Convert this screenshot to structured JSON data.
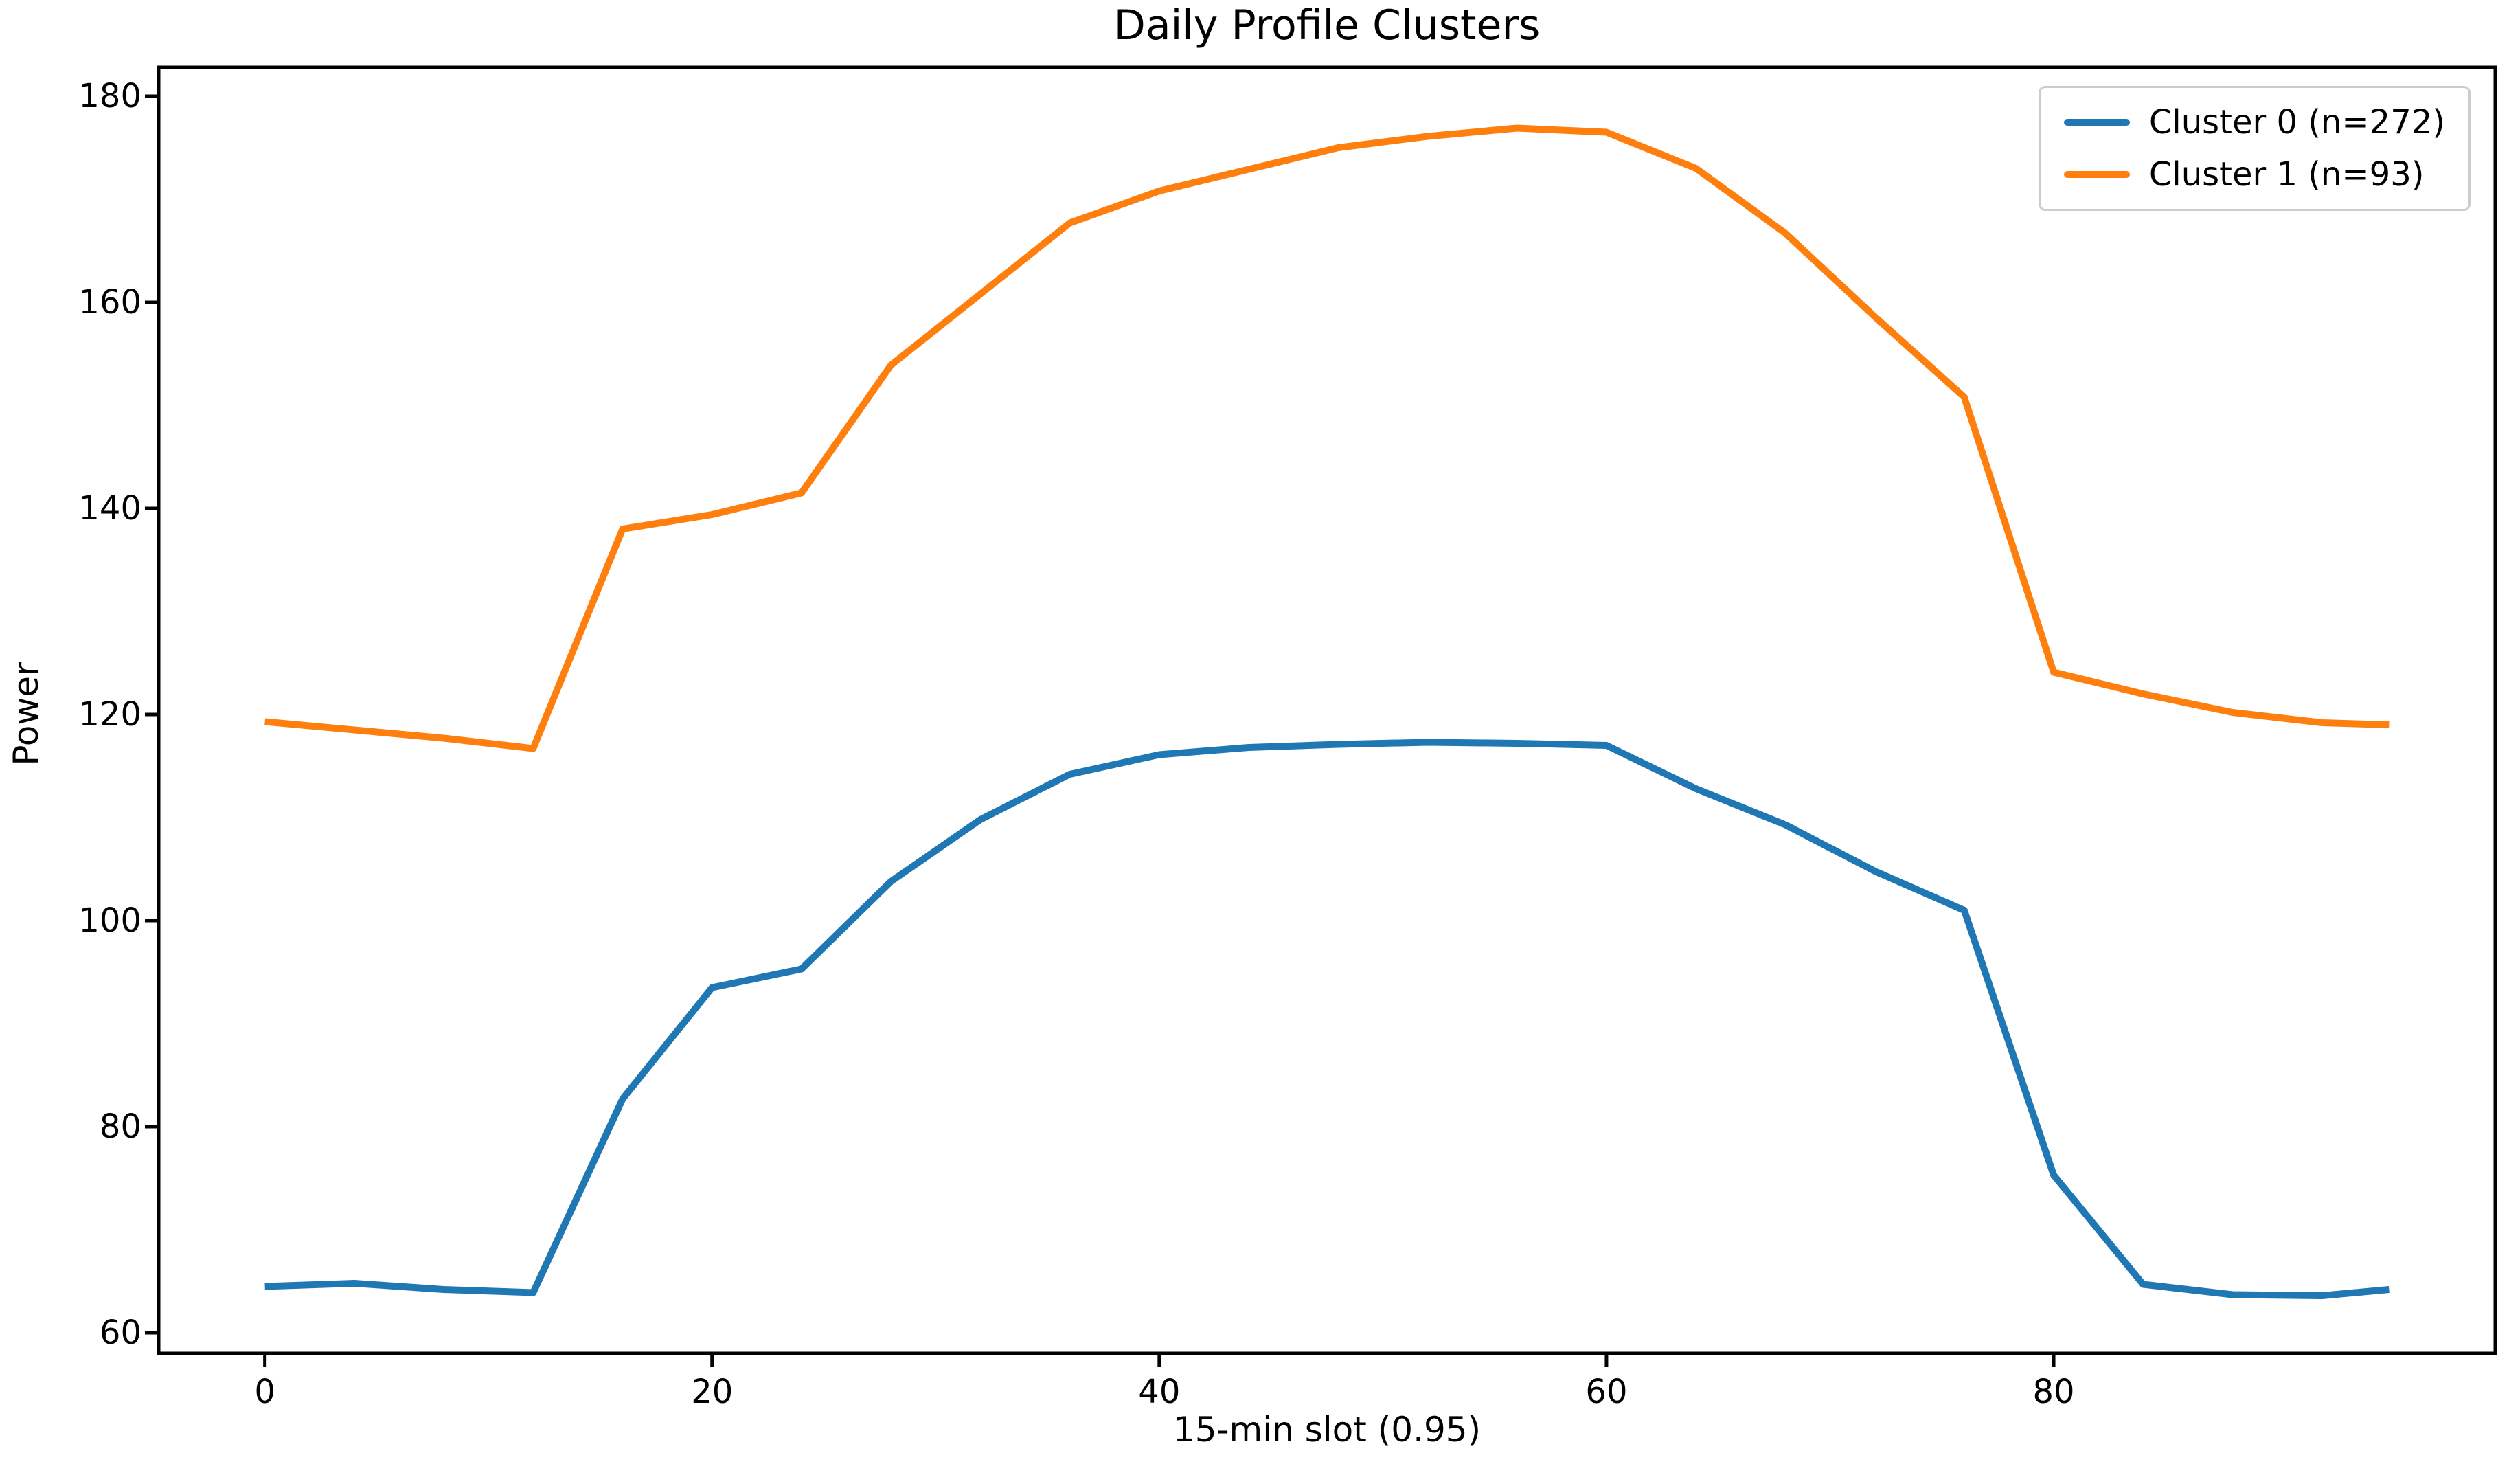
{
  "title": "Daily Profile Clusters",
  "chart_data": {
    "type": "line",
    "title": "Daily Profile Clusters",
    "xlabel": "15-min slot (0.95)",
    "ylabel": "Power",
    "x": [
      0,
      4,
      8,
      12,
      16,
      20,
      24,
      28,
      32,
      36,
      40,
      44,
      48,
      52,
      56,
      60,
      64,
      68,
      72,
      76,
      80,
      84,
      88,
      92,
      95
    ],
    "series": [
      {
        "name": "Cluster 0 (n=272)",
        "color": "#1f77b4",
        "values": [
          64.5,
          64.8,
          64.2,
          63.9,
          82.7,
          93.5,
          95.3,
          103.8,
          109.8,
          114.2,
          116.1,
          116.8,
          117.1,
          117.3,
          117.2,
          117.0,
          112.8,
          109.3,
          104.8,
          101.0,
          75.3,
          64.7,
          63.7,
          63.6,
          64.2
        ]
      },
      {
        "name": "Cluster 1 (n=93)",
        "color": "#ff7f0e",
        "values": [
          119.3,
          118.5,
          117.7,
          116.7,
          138.0,
          139.4,
          141.5,
          153.9,
          160.8,
          167.7,
          170.8,
          172.9,
          175.0,
          176.1,
          176.9,
          176.5,
          173.0,
          166.7,
          158.6,
          150.8,
          124.1,
          122.0,
          120.2,
          119.2,
          119.0
        ]
      }
    ],
    "xticks": [
      0,
      20,
      40,
      60,
      80
    ],
    "yticks": [
      60,
      80,
      100,
      120,
      140,
      160,
      180
    ],
    "xlim": [
      -4.75,
      99.75
    ],
    "ylim": [
      58.0,
      182.8
    ],
    "grid": false,
    "legend_position": "upper right",
    "axis_color": "#000000"
  }
}
